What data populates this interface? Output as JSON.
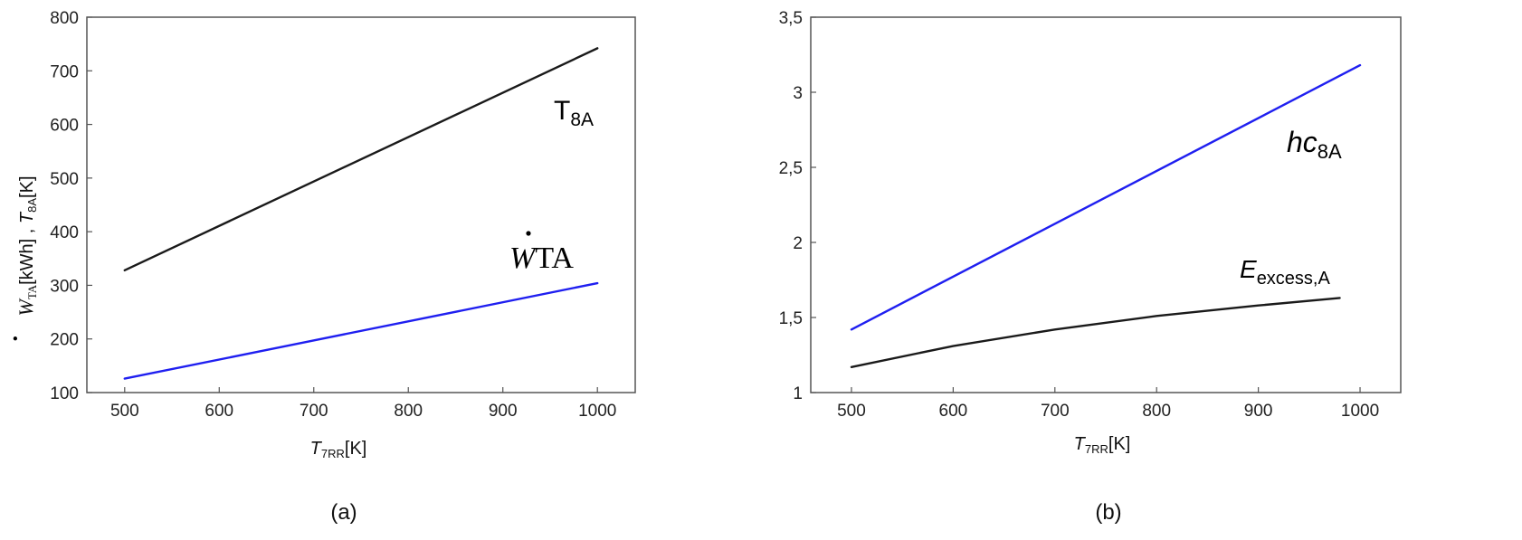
{
  "colors": {
    "black_series": "#1a1a1a",
    "blue_series": "#1f1ff0",
    "frame": "#555555"
  },
  "chart_data": [
    {
      "type": "line",
      "caption": "(a)",
      "xlabel": {
        "var": "T",
        "sub": "7RR",
        "unit": "[K]"
      },
      "ylabel": {
        "v1": "W",
        "s1": "TA",
        "u1": "[kWh] , ",
        "v2": "T",
        "s2": "8A",
        "u2": "[K]"
      },
      "xlim": [
        460,
        1040
      ],
      "ylim": [
        100,
        800
      ],
      "xticks": [
        "500",
        "600",
        "700",
        "800",
        "900",
        "1000"
      ],
      "yticks": [
        "100",
        "200",
        "300",
        "400",
        "500",
        "600",
        "700",
        "800"
      ],
      "grid": false,
      "series": [
        {
          "name": "T8A",
          "label_main": "T",
          "label_sub": "8A",
          "color": "black_series",
          "x": [
            500,
            1000
          ],
          "y": [
            328,
            742
          ]
        },
        {
          "name": "WTA",
          "label_main": "W",
          "label_sub": "TA",
          "color": "blue_series",
          "x": [
            500,
            1000
          ],
          "y": [
            126,
            304
          ]
        }
      ]
    },
    {
      "type": "line",
      "caption": "(b)",
      "xlabel": {
        "var": "T",
        "sub": "7RR",
        "unit": "[K]"
      },
      "xlim": [
        460,
        1040
      ],
      "ylim": [
        1,
        3.5
      ],
      "xticks": [
        "500",
        "600",
        "700",
        "800",
        "900",
        "1000"
      ],
      "yticks": [
        "1",
        "1,5",
        "2",
        "2,5",
        "3",
        "3,5"
      ],
      "grid": false,
      "series": [
        {
          "name": "hc8A",
          "label_main": "hc",
          "label_sub": "8A",
          "color": "blue_series",
          "x": [
            500,
            1000
          ],
          "y": [
            1.42,
            3.18
          ]
        },
        {
          "name": "Eexcess,A",
          "label_main": "E",
          "label_sub": "excess,A",
          "color": "black_series",
          "x": [
            500,
            600,
            700,
            800,
            900,
            980
          ],
          "y": [
            1.17,
            1.31,
            1.42,
            1.51,
            1.58,
            1.63
          ]
        }
      ]
    }
  ]
}
